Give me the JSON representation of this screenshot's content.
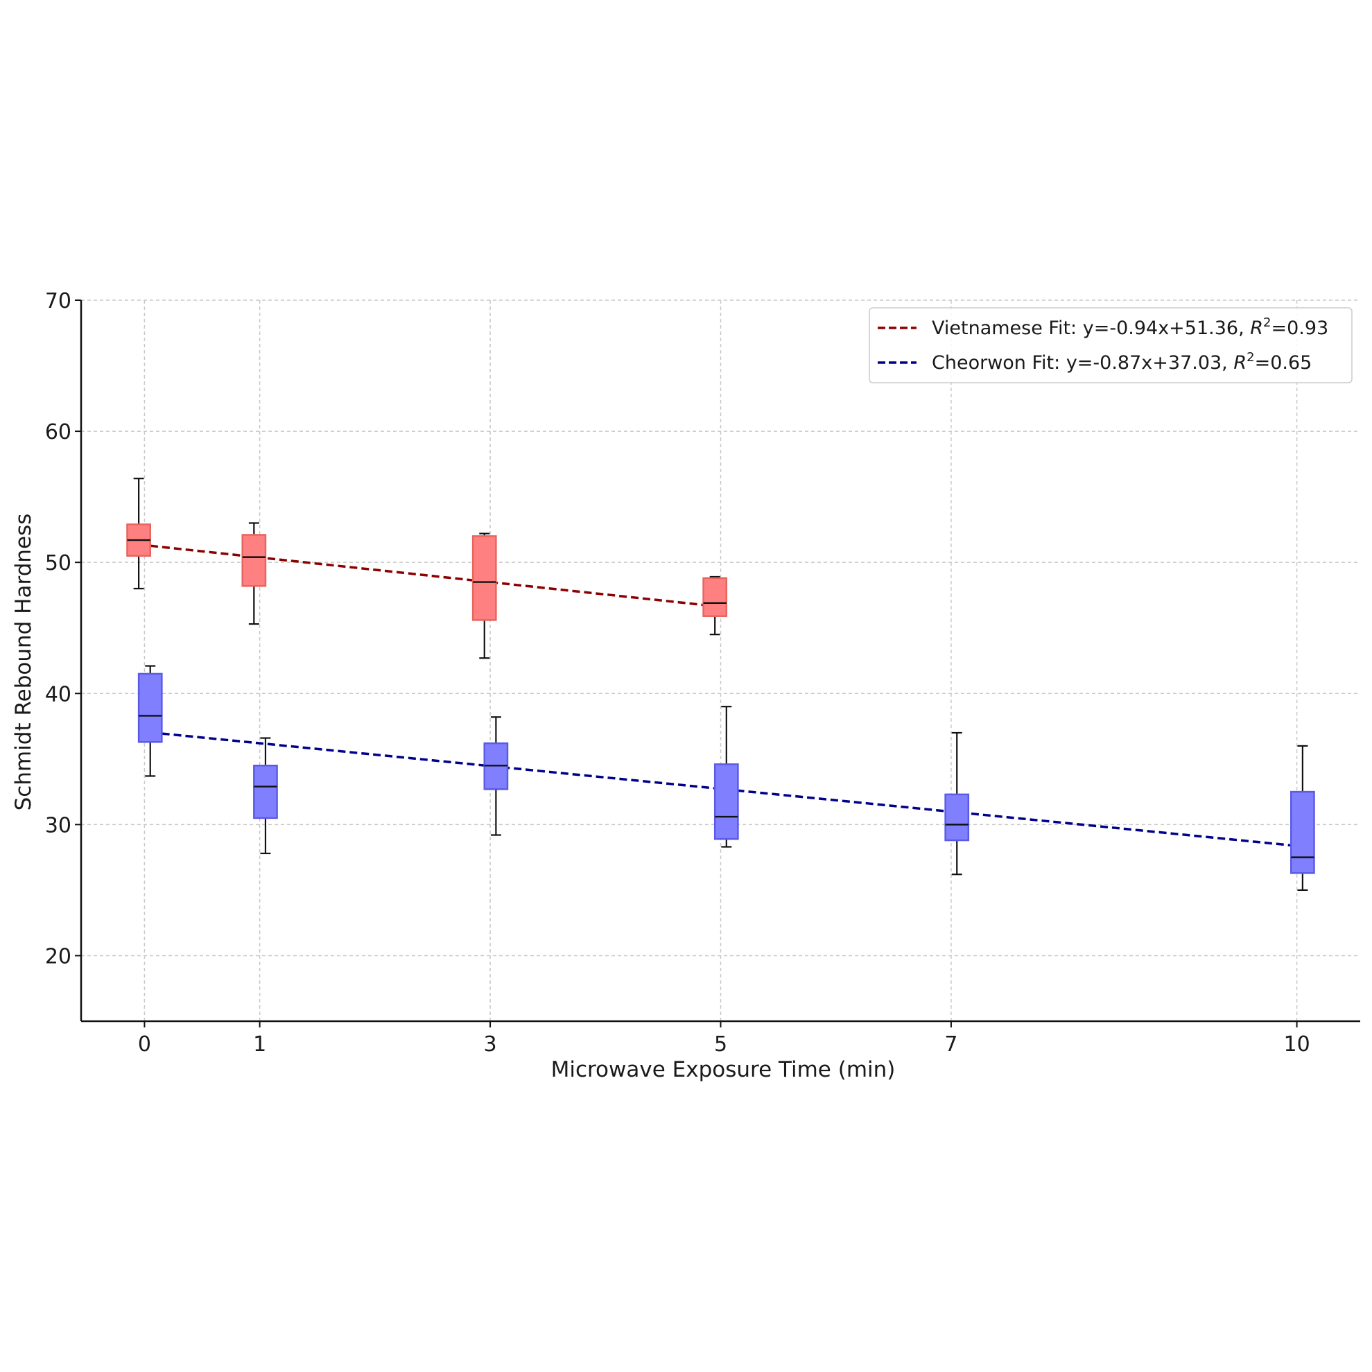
{
  "chart_data": {
    "type": "box",
    "title": "",
    "xlabel": "Microwave Exposure Time (min)",
    "ylabel": "Schmidt Rebound Hardness",
    "x_ticks": [
      0,
      1,
      3,
      5,
      7,
      10
    ],
    "y_ticks": [
      20,
      30,
      40,
      50,
      60,
      70
    ],
    "xlim": [
      -0.55,
      10.55
    ],
    "ylim": [
      15,
      70
    ],
    "grid": true,
    "legend_position": "top-right",
    "series": [
      {
        "name": "Vietnamese",
        "box_color": "#ff8080",
        "box_edge_color": "#e8645f",
        "fit_color": "#8b0000",
        "fit_label": "Vietnamese Fit: y=-0.94x+51.36, ",
        "fit_r2_value": "=0.93",
        "fit_slope": -0.94,
        "fit_intercept": 51.36,
        "boxes": [
          {
            "x": 0,
            "whisker_low": 48.0,
            "q1": 50.5,
            "median": 51.7,
            "q3": 52.9,
            "whisker_high": 56.4
          },
          {
            "x": 1,
            "whisker_low": 45.3,
            "q1": 48.2,
            "median": 50.4,
            "q3": 52.1,
            "whisker_high": 53.0
          },
          {
            "x": 3,
            "whisker_low": 42.7,
            "q1": 45.6,
            "median": 48.5,
            "q3": 52.0,
            "whisker_high": 52.2
          },
          {
            "x": 5,
            "whisker_low": 44.5,
            "q1": 45.9,
            "median": 46.9,
            "q3": 48.8,
            "whisker_high": 48.9
          }
        ]
      },
      {
        "name": "Cheorwon",
        "box_color": "#8080ff",
        "box_edge_color": "#5a5ae6",
        "fit_color": "#00008b",
        "fit_label": "Cheorwon Fit: y=-0.87x+37.03, ",
        "fit_r2_value": "=0.65",
        "fit_slope": -0.87,
        "fit_intercept": 37.03,
        "boxes": [
          {
            "x": 0,
            "whisker_low": 33.7,
            "q1": 36.3,
            "median": 38.3,
            "q3": 41.5,
            "whisker_high": 42.1
          },
          {
            "x": 1,
            "whisker_low": 27.8,
            "q1": 30.5,
            "median": 32.9,
            "q3": 34.5,
            "whisker_high": 36.6
          },
          {
            "x": 3,
            "whisker_low": 29.2,
            "q1": 32.7,
            "median": 34.5,
            "q3": 36.2,
            "whisker_high": 38.2
          },
          {
            "x": 5,
            "whisker_low": 28.3,
            "q1": 28.9,
            "median": 30.6,
            "q3": 34.6,
            "whisker_high": 39.0
          },
          {
            "x": 7,
            "whisker_low": 26.2,
            "q1": 28.8,
            "median": 30.0,
            "q3": 32.3,
            "whisker_high": 37.0
          },
          {
            "x": 10,
            "whisker_low": 25.0,
            "q1": 26.3,
            "median": 27.5,
            "q3": 32.5,
            "whisker_high": 36.0
          }
        ]
      }
    ]
  }
}
